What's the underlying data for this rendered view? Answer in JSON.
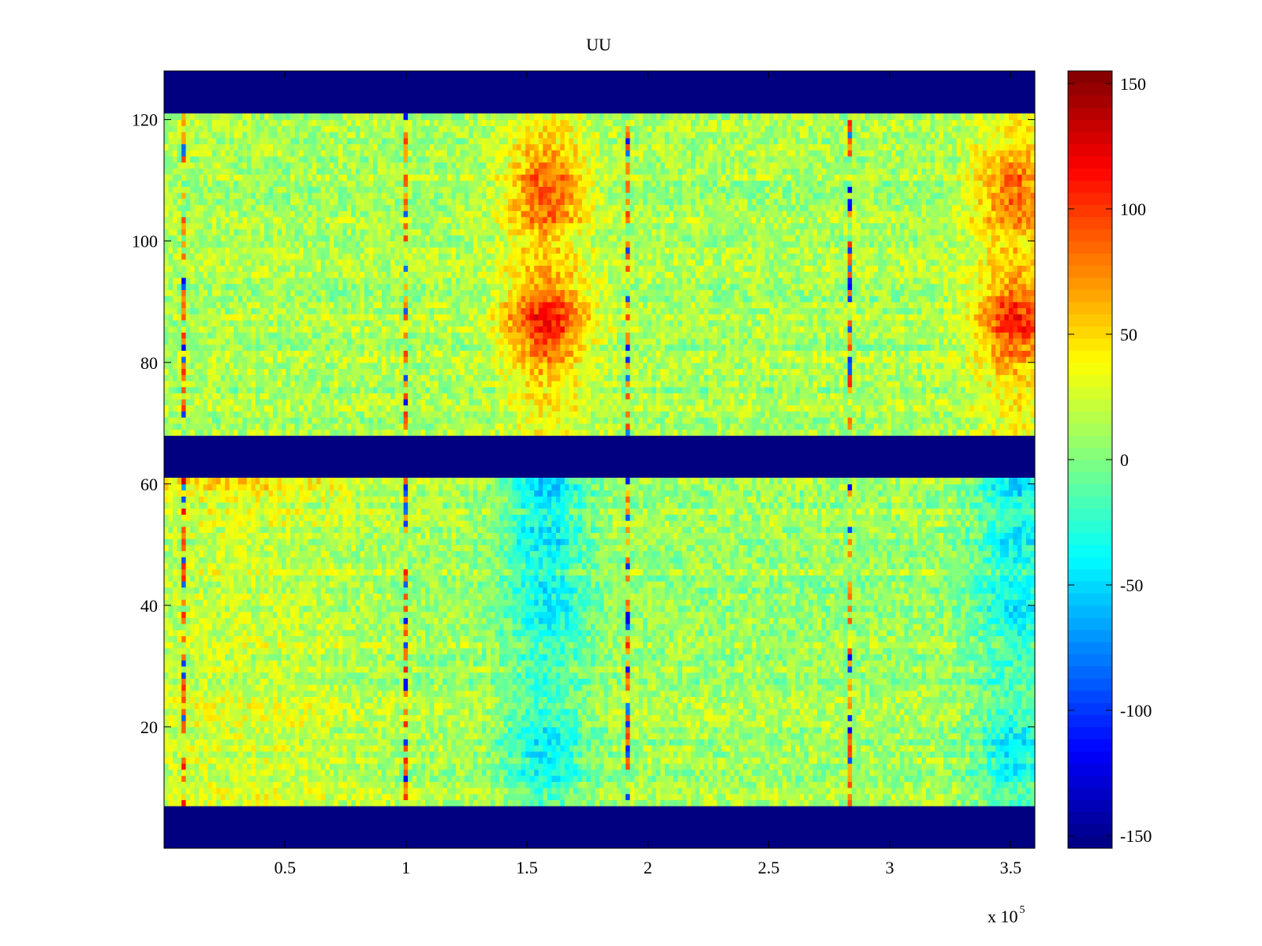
{
  "chart_data": {
    "type": "heatmap",
    "title": "UU",
    "xlabel": "",
    "ylabel": "",
    "x_multiplier_label": "x 10",
    "x_multiplier_exponent": "5",
    "xlim": [
      0,
      360000
    ],
    "ylim": [
      0,
      128
    ],
    "xticks": [
      {
        "value": 50000,
        "label": "0.5"
      },
      {
        "value": 100000,
        "label": "1"
      },
      {
        "value": 150000,
        "label": "1.5"
      },
      {
        "value": 200000,
        "label": "2"
      },
      {
        "value": 250000,
        "label": "2.5"
      },
      {
        "value": 300000,
        "label": "3"
      },
      {
        "value": 350000,
        "label": "3.5"
      }
    ],
    "yticks": [
      {
        "value": 20,
        "label": "20"
      },
      {
        "value": 40,
        "label": "40"
      },
      {
        "value": 60,
        "label": "60"
      },
      {
        "value": 80,
        "label": "80"
      },
      {
        "value": 100,
        "label": "100"
      },
      {
        "value": 120,
        "label": "120"
      }
    ],
    "colorbar": {
      "colormap": "jet",
      "clim": [
        -155,
        155
      ],
      "ticks": [
        {
          "value": 150,
          "label": "150"
        },
        {
          "value": 100,
          "label": "100"
        },
        {
          "value": 50,
          "label": "50"
        },
        {
          "value": 0,
          "label": "0"
        },
        {
          "value": -50,
          "label": "-50"
        },
        {
          "value": -100,
          "label": "-100"
        },
        {
          "value": -150,
          "label": "-150"
        }
      ]
    },
    "masked_rows": [
      {
        "y_from": 0,
        "y_to": 7,
        "value": -155
      },
      {
        "y_from": 61,
        "y_to": 68,
        "value": -155
      },
      {
        "y_from": 121,
        "y_to": 128,
        "value": -155
      }
    ],
    "grid": false,
    "legend": "none"
  }
}
